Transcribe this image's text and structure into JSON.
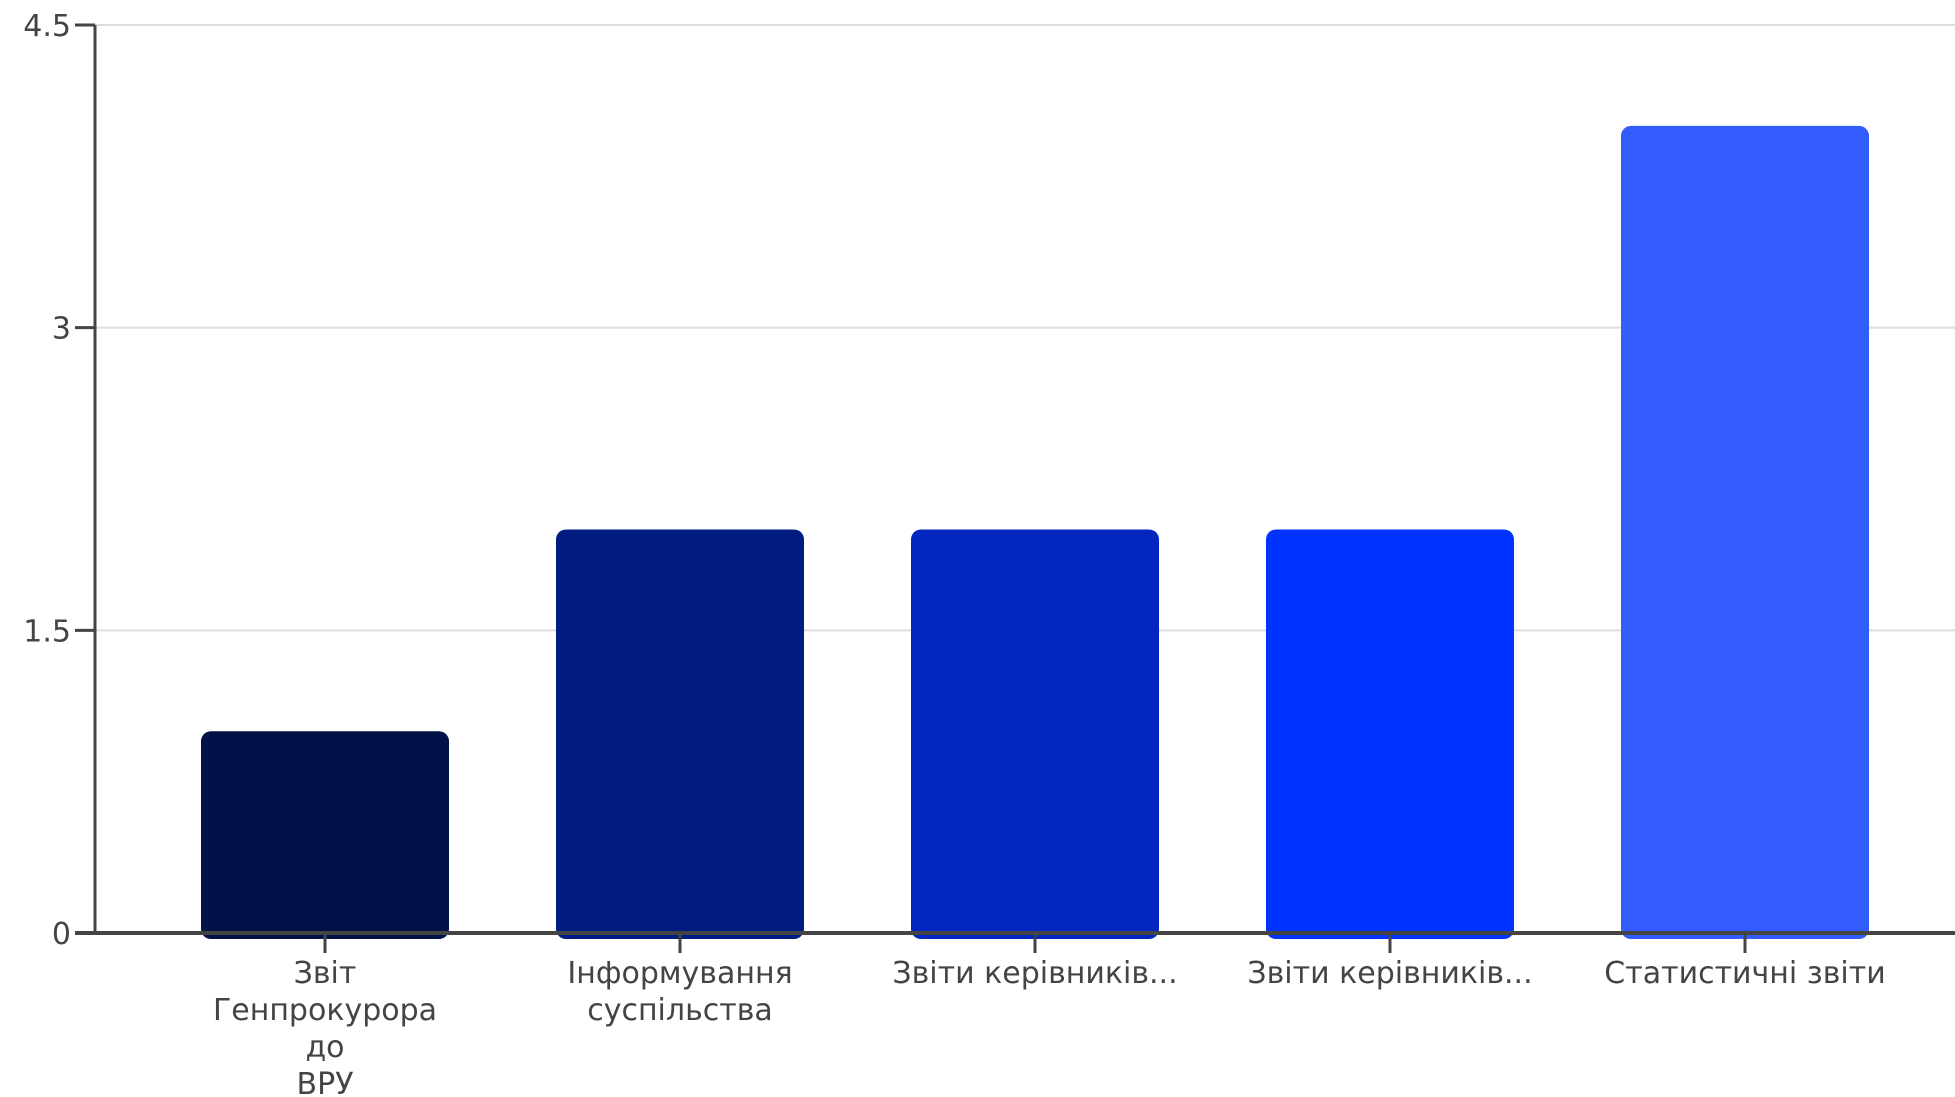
{
  "chart_data": {
    "type": "bar",
    "categories": [
      [
        "Звіт",
        "Генпрокурора",
        "до",
        "ВРУ"
      ],
      [
        "Інформування",
        "суспільства"
      ],
      [
        "Звіти керівників..."
      ],
      [
        "Звіти керівників..."
      ],
      [
        "Статистичні звіти"
      ]
    ],
    "values": [
      1,
      2,
      2,
      2,
      4
    ],
    "colors": [
      "#001247",
      "#001c80",
      "#0226bf",
      "#0033ff",
      "#335cff"
    ],
    "ylim": [
      0,
      4.5
    ],
    "yticks": [
      "0",
      "1.5",
      "3",
      "4.5"
    ],
    "ytick_values": [
      0,
      1.5,
      3,
      4.5
    ],
    "grid": true,
    "title": "",
    "xlabel": "",
    "ylabel": ""
  }
}
